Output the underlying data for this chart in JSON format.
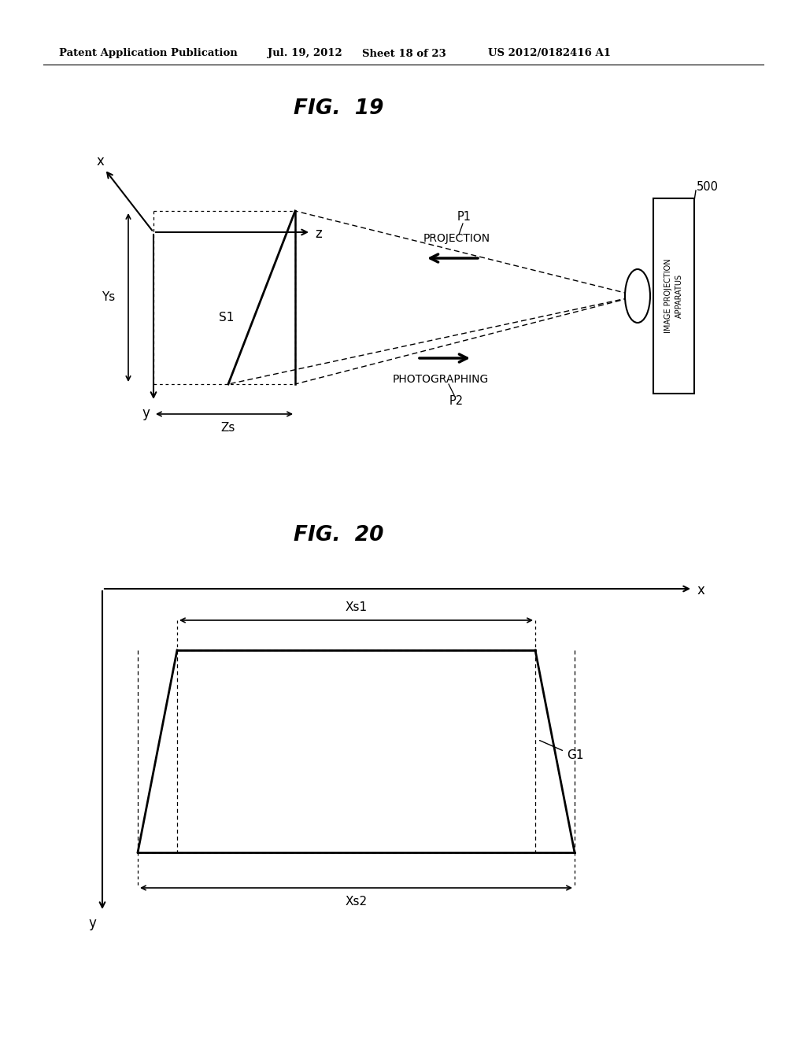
{
  "bg_color": "#ffffff",
  "header_text": "Patent Application Publication",
  "header_date": "Jul. 19, 2012",
  "header_sheet": "Sheet 18 of 23",
  "header_patent": "US 2012/0182416 A1",
  "fig19_title": "FIG.  19",
  "fig20_title": "FIG.  20",
  "line_color": "#000000"
}
